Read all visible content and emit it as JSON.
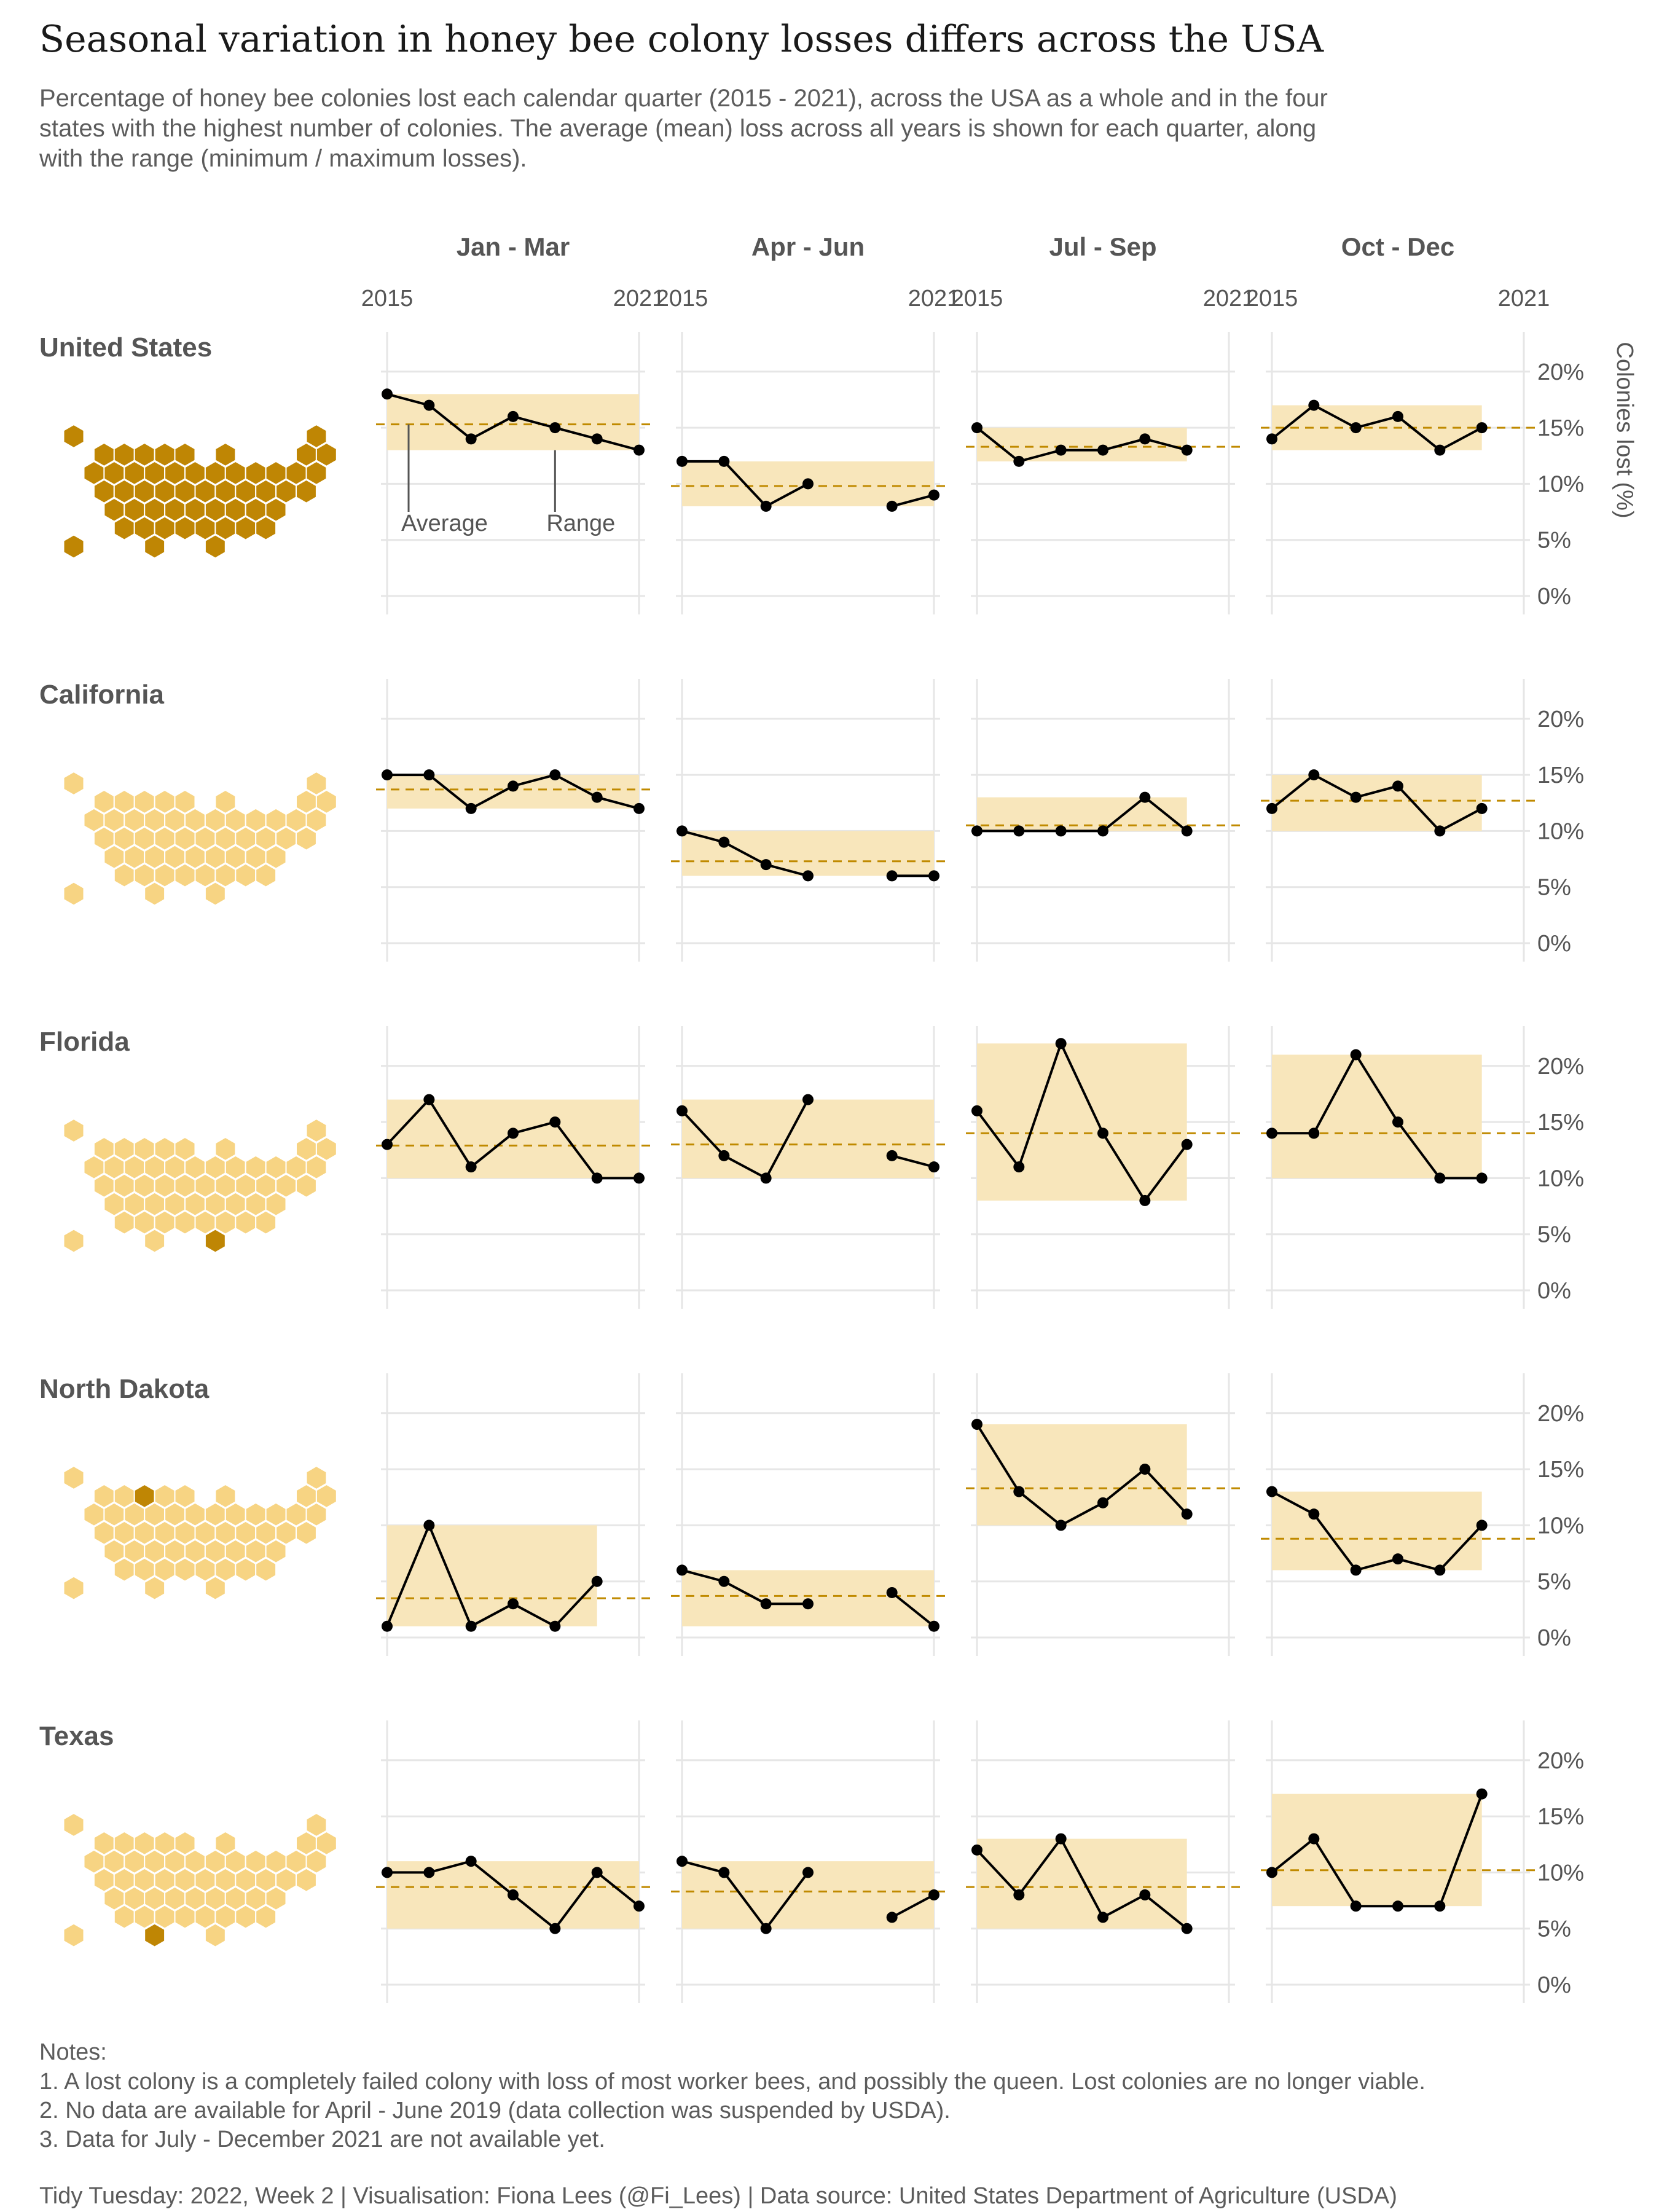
{
  "title": "Seasonal variation in honey bee colony losses differs across the USA",
  "subtitle_lines": [
    "Percentage of honey bee colonies lost each calendar quarter (2015 - 2021), across the USA as a whole and in the four",
    "states with the highest number of colonies. The average (mean) loss across all years is shown for each quarter, along",
    "with the range (minimum / maximum losses)."
  ],
  "notes": [
    "Notes:",
    "1. A lost colony is a completely failed colony with loss of most worker bees, and possibly the queen. Lost colonies are no longer viable.",
    "2. No data are available for April - June 2019 (data collection was suspended by USDA).",
    "3. Data for July - December 2021 are not available yet."
  ],
  "caption": "Tidy Tuesday: 2022, Week 2 | Visualisation: Fiona Lees (@Fi_Lees) | Data source: United States Department of Agriculture (USDA)",
  "annotations": {
    "average": "Average",
    "range": "Range"
  },
  "colors": {
    "range_fill": "#f8e6bb",
    "average_line": "#c08a00",
    "series_line": "#000000",
    "map_highlight": "#bf8604",
    "map_light": "#f7d483",
    "grid": "#e6e6e6",
    "label": "#555555"
  },
  "chart_data": {
    "type": "line",
    "quarters": [
      "Jan - Mar",
      "Apr - Jun",
      "Jul - Sep",
      "Oct - Dec"
    ],
    "x": [
      2015,
      2016,
      2017,
      2018,
      2019,
      2020,
      2021
    ],
    "x_tick_labels": [
      "2015",
      "2021"
    ],
    "ylim": [
      0,
      23
    ],
    "y_ticks": [
      0,
      5,
      10,
      15,
      20
    ],
    "y_tick_labels": [
      "0%",
      "5%",
      "10%",
      "15%",
      "20%"
    ],
    "ylabel": "Colonies lost (%)",
    "regions": [
      {
        "name": "United States",
        "highlight": "all",
        "series": [
          {
            "values": [
              18,
              17,
              14,
              16,
              15,
              14,
              13
            ],
            "average": 15.3,
            "min": 13,
            "max": 18
          },
          {
            "values": [
              12,
              12,
              8,
              10,
              null,
              8,
              9
            ],
            "average": 9.8,
            "min": 8,
            "max": 12
          },
          {
            "values": [
              15,
              12,
              13,
              13,
              14,
              13,
              null
            ],
            "average": 13.3,
            "min": 12,
            "max": 15
          },
          {
            "values": [
              14,
              17,
              15,
              16,
              13,
              15,
              null
            ],
            "average": 15.0,
            "min": 13,
            "max": 17
          }
        ]
      },
      {
        "name": "California",
        "highlight": "CA",
        "series": [
          {
            "values": [
              15,
              15,
              12,
              14,
              15,
              13,
              12
            ],
            "average": 13.7,
            "min": 12,
            "max": 15
          },
          {
            "values": [
              10,
              9,
              7,
              6,
              null,
              6,
              6
            ],
            "average": 7.3,
            "min": 6,
            "max": 10
          },
          {
            "values": [
              10,
              10,
              10,
              10,
              13,
              10,
              null
            ],
            "average": 10.5,
            "min": 10,
            "max": 13
          },
          {
            "values": [
              12,
              15,
              13,
              14,
              10,
              12,
              null
            ],
            "average": 12.7,
            "min": 10,
            "max": 15
          }
        ]
      },
      {
        "name": "Florida",
        "highlight": "FL",
        "series": [
          {
            "values": [
              13,
              17,
              11,
              14,
              15,
              10,
              10
            ],
            "average": 12.9,
            "min": 10,
            "max": 17
          },
          {
            "values": [
              16,
              12,
              10,
              17,
              null,
              12,
              11
            ],
            "average": 13.0,
            "min": 10,
            "max": 17
          },
          {
            "values": [
              16,
              11,
              22,
              14,
              8,
              13,
              null
            ],
            "average": 14.0,
            "min": 8,
            "max": 22
          },
          {
            "values": [
              14,
              14,
              21,
              15,
              10,
              10,
              null
            ],
            "average": 14.0,
            "min": 10,
            "max": 21
          }
        ]
      },
      {
        "name": "North Dakota",
        "highlight": "ND",
        "series": [
          {
            "values": [
              1,
              10,
              1,
              3,
              1,
              5,
              null
            ],
            "average": 3.5,
            "min": 1,
            "max": 10
          },
          {
            "values": [
              6,
              5,
              3,
              3,
              null,
              4,
              1
            ],
            "average": 3.7,
            "min": 1,
            "max": 6
          },
          {
            "values": [
              19,
              13,
              10,
              12,
              15,
              11,
              null
            ],
            "average": 13.3,
            "min": 10,
            "max": 19
          },
          {
            "values": [
              13,
              11,
              6,
              7,
              6,
              10,
              null
            ],
            "average": 8.8,
            "min": 6,
            "max": 13
          }
        ]
      },
      {
        "name": "Texas",
        "highlight": "TX",
        "series": [
          {
            "values": [
              10,
              10,
              11,
              8,
              5,
              10,
              7
            ],
            "average": 8.7,
            "min": 5,
            "max": 11
          },
          {
            "values": [
              11,
              10,
              5,
              10,
              null,
              6,
              8
            ],
            "average": 8.3,
            "min": 5,
            "max": 11
          },
          {
            "values": [
              12,
              8,
              13,
              6,
              8,
              5,
              null
            ],
            "average": 8.7,
            "min": 5,
            "max": 13
          },
          {
            "values": [
              10,
              13,
              7,
              7,
              7,
              17,
              null
            ],
            "average": 10.2,
            "min": 7,
            "max": 17
          }
        ]
      }
    ]
  }
}
